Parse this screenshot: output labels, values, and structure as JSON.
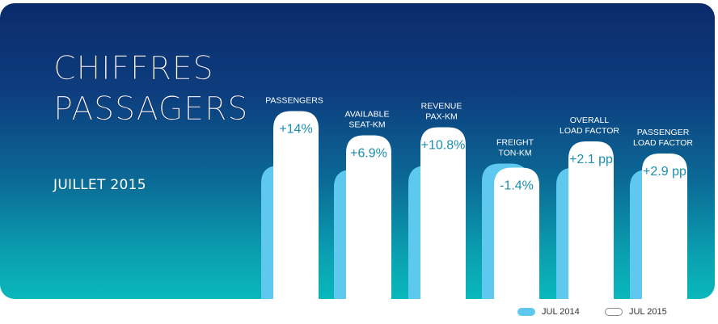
{
  "title_line1": "CHIFFRES",
  "title_line2": "PASSAGERS",
  "subtitle": "JUILLET 2015",
  "colors": {
    "jul2014": "#5fc8ef",
    "jul2015": "#ffffff",
    "value_text": "#1a8fb0"
  },
  "chart_data": {
    "type": "bar",
    "title": "CHIFFRES PASSAGERS",
    "subtitle": "JUILLET 2015",
    "categories": [
      [
        "PASSENGERS"
      ],
      [
        "AVAILABLE",
        "SEAT-KM"
      ],
      [
        "REVENUE",
        "PAX-KM"
      ],
      [
        "FREIGHT",
        "TON-KM"
      ],
      [
        "OVERALL",
        "LOAD FACTOR"
      ],
      [
        "PASSENGER",
        "LOAD FACTOR"
      ]
    ],
    "change_labels": [
      "+14%",
      "+6.9%",
      "+10.8%",
      "-1.4%",
      "+2.1 pp",
      "+2.9 pp"
    ],
    "series": [
      {
        "name": "JUL 2014",
        "values": [
          66,
          64,
          66,
          67,
          65,
          64
        ]
      },
      {
        "name": "JUL 2015",
        "values": [
          93,
          81,
          85,
          65,
          78,
          72
        ]
      }
    ],
    "ylim": [
      0,
      100
    ],
    "legend_position": "bottom-right",
    "grid": false
  }
}
